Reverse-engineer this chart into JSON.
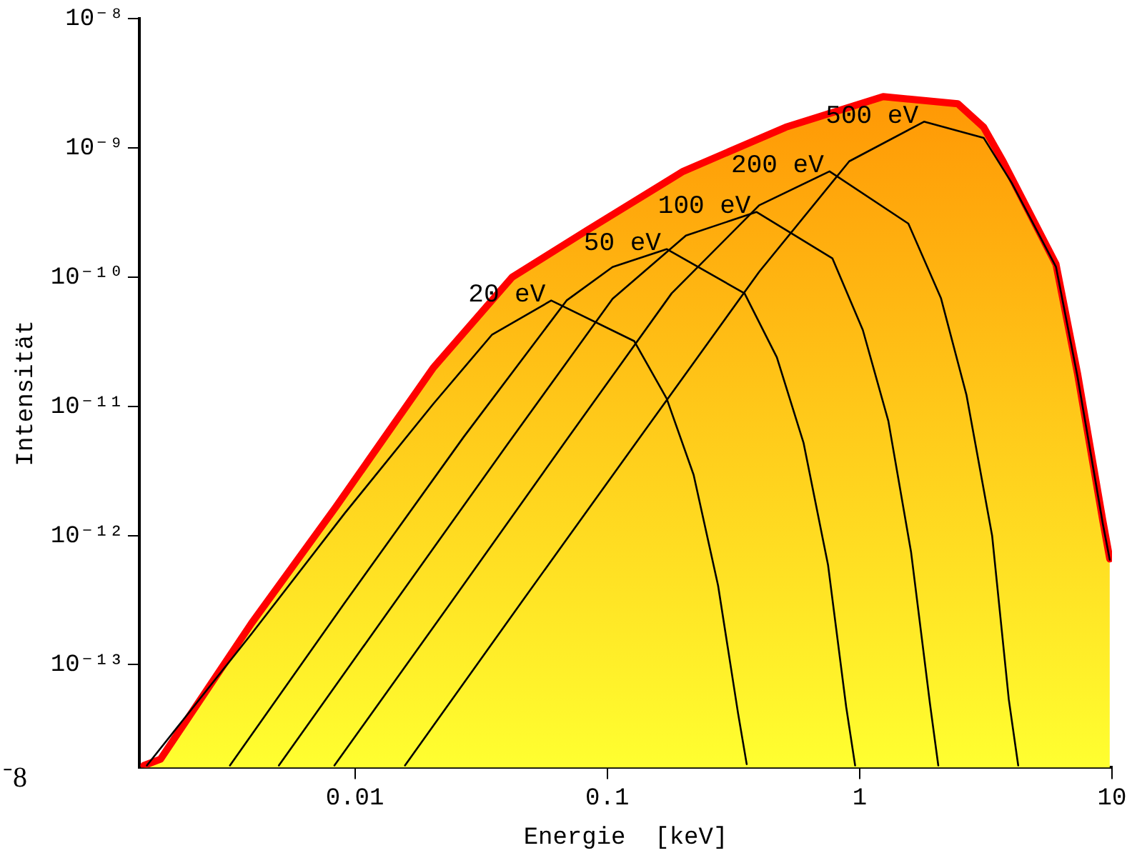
{
  "chart_data": {
    "type": "line",
    "xlabel": "Energie  [keV]",
    "ylabel": "Intensität",
    "log": "xy",
    "marker": "none",
    "xlim": [
      0.0014,
      10
    ],
    "ylim": [
      1.6e-14,
      1e-08
    ],
    "xticks": [
      0.01,
      0.1,
      1,
      10
    ],
    "yticks": [
      {
        "value": 1e-08,
        "label": "10⁻⁸"
      },
      {
        "value": 1e-09,
        "label": "10⁻⁹"
      },
      {
        "value": 1e-10,
        "label": "10⁻¹⁰"
      },
      {
        "value": 1e-11,
        "label": "10⁻¹¹"
      },
      {
        "value": 1e-12,
        "label": "10⁻¹²"
      },
      {
        "value": 1e-13,
        "label": "10⁻¹³"
      }
    ],
    "series": [
      {
        "type": "area",
        "color": "#ff0000",
        "x": [
          0.00146,
          0.0017,
          0.0039,
          0.0084,
          0.0205,
          0.042,
          0.083,
          0.2,
          0.51,
          1.24,
          2.45,
          3.1,
          3.7,
          6.0,
          7.3,
          9.2,
          9.8
        ],
        "values": [
          1.66e-14,
          1.86e-14,
          2.1e-13,
          1.66e-12,
          2e-11,
          1e-10,
          2.3e-10,
          6.6e-10,
          1.45e-09,
          2.5e-09,
          2.2e-09,
          1.45e-09,
          7.9e-10,
          1.26e-10,
          1.8e-11,
          1.3e-12,
          6.6e-13
        ]
      },
      {
        "type": "line",
        "color": "#000000",
        "x": [
          0.0015,
          0.0039,
          0.0091,
          0.0205,
          0.035,
          0.06,
          0.128,
          0.172,
          0.22,
          0.275,
          0.33,
          0.357
        ],
        "values": [
          1.66e-14,
          1.74e-13,
          1.48e-12,
          1.05e-11,
          3.6e-11,
          6.6e-11,
          3.2e-11,
          1.15e-11,
          2.95e-12,
          4.1e-13,
          4.2e-14,
          1.7e-14
        ]
      },
      {
        "type": "line",
        "color": "#000000",
        "x": [
          0.0032,
          0.0091,
          0.027,
          0.069,
          0.105,
          0.172,
          0.35,
          0.47,
          0.6,
          0.75,
          0.885,
          0.96
        ],
        "values": [
          1.66e-14,
          3e-13,
          5.8e-12,
          6.6e-11,
          1.2e-10,
          1.65e-10,
          7.5e-11,
          2.4e-11,
          5.2e-12,
          5.9e-13,
          4.7e-14,
          1.66e-14
        ]
      },
      {
        "type": "line",
        "color": "#000000",
        "x": [
          0.005,
          0.0136,
          0.04,
          0.105,
          0.205,
          0.39,
          0.78,
          1.03,
          1.3,
          1.6,
          1.9,
          2.05
        ],
        "values": [
          1.66e-14,
          2.6e-13,
          5e-12,
          6.8e-11,
          2.1e-10,
          3.2e-10,
          1.4e-10,
          3.9e-11,
          7.7e-12,
          7.4e-13,
          5e-14,
          1.66e-14
        ]
      },
      {
        "type": "line",
        "color": "#000000",
        "x": [
          0.0083,
          0.0235,
          0.069,
          0.18,
          0.4,
          0.76,
          1.56,
          2.1,
          2.65,
          3.35,
          3.9,
          4.25
        ],
        "values": [
          1.66e-14,
          2.85e-13,
          5.5e-12,
          7.5e-11,
          3.6e-10,
          6.6e-10,
          2.6e-10,
          6.9e-11,
          1.23e-11,
          1e-12,
          5.4e-14,
          1.66e-14
        ]
      },
      {
        "type": "line",
        "color": "#000000",
        "x": [
          0.0158,
          0.046,
          0.136,
          0.4,
          0.91,
          1.8,
          3.1,
          4.0,
          6.0,
          7.3,
          9.2,
          9.8
        ],
        "values": [
          1.66e-14,
          3.1e-13,
          5.9e-12,
          1.1e-10,
          7.9e-10,
          1.6e-09,
          1.2e-09,
          5.4e-10,
          1.2e-10,
          1.7e-11,
          1.23e-12,
          6.5e-13
        ]
      }
    ],
    "annotations": [
      {
        "text": "20 eV",
        "x": 0.06,
        "y": 6.6e-11
      },
      {
        "text": "50 eV",
        "x": 0.172,
        "y": 1.65e-10
      },
      {
        "text": "100 eV",
        "x": 0.39,
        "y": 3.2e-10
      },
      {
        "text": "200 eV",
        "x": 0.76,
        "y": 6.6e-10
      },
      {
        "text": "500 eV",
        "x": 1.8,
        "y": 1.6e-09
      },
      "⁻8"
    ]
  }
}
